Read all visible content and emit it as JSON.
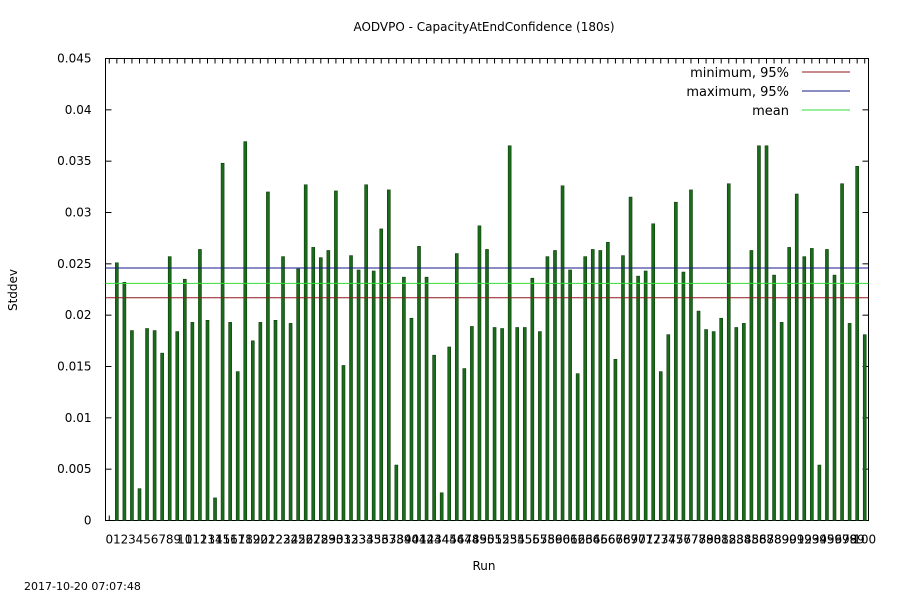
{
  "chart_data": {
    "type": "bar",
    "title": "AODVPO - CapacityAtEndConfidence (180s)",
    "xlabel": "Run",
    "ylabel": "Stddev",
    "ylim": [
      0,
      0.045
    ],
    "yticks": [
      "0",
      "0.005",
      "0.01",
      "0.015",
      "0.02",
      "0.025",
      "0.03",
      "0.035",
      "0.04",
      "0.045"
    ],
    "xticks": [
      "0",
      "1",
      "2",
      "3",
      "4",
      "5",
      "6",
      "7",
      "8",
      "9",
      "10",
      "11",
      "12",
      "13",
      "14",
      "15",
      "16",
      "17",
      "18",
      "19",
      "20",
      "21",
      "22",
      "23",
      "24",
      "25",
      "26",
      "27",
      "28",
      "29",
      "30",
      "31",
      "32",
      "33",
      "34",
      "35",
      "36",
      "37",
      "38",
      "39",
      "40",
      "41",
      "42",
      "43",
      "44",
      "45",
      "46",
      "47",
      "48",
      "49",
      "50",
      "51",
      "52",
      "53",
      "54",
      "55",
      "56",
      "57",
      "58",
      "59",
      "60",
      "61",
      "62",
      "63",
      "64",
      "65",
      "66",
      "67",
      "68",
      "69",
      "70",
      "71",
      "72",
      "73",
      "74",
      "75",
      "76",
      "77",
      "78",
      "79",
      "80",
      "81",
      "82",
      "83",
      "84",
      "85",
      "86",
      "87",
      "88",
      "89",
      "90",
      "91",
      "92",
      "93",
      "94",
      "95",
      "96",
      "97",
      "98",
      "99",
      "100"
    ],
    "bar_color": "#1a6b1a",
    "bar_edge_color": "#0a3d0a",
    "grid": false,
    "legend_position": "top-right",
    "series": [
      {
        "name": "",
        "values": [
          0.0251,
          0.0232,
          0.0185,
          0.0031,
          0.0187,
          0.0185,
          0.0163,
          0.0257,
          0.0184,
          0.0235,
          0.0193,
          0.0264,
          0.0195,
          0.0022,
          0.0348,
          0.0193,
          0.0145,
          0.0369,
          0.0175,
          0.0193,
          0.032,
          0.0195,
          0.0257,
          0.0192,
          0.0245,
          0.0327,
          0.0266,
          0.0256,
          0.0263,
          0.0321,
          0.0151,
          0.0258,
          0.0244,
          0.0327,
          0.0243,
          0.0284,
          0.0322,
          0.0054,
          0.0237,
          0.0197,
          0.0267,
          0.0237,
          0.0161,
          0.0027,
          0.0169,
          0.026,
          0.0148,
          0.0189,
          0.0287,
          0.0264,
          0.0188,
          0.0187,
          0.0365,
          0.0188,
          0.0188,
          0.0236,
          0.0184,
          0.0257,
          0.0263,
          0.0326,
          0.0244,
          0.0143,
          0.0257,
          0.0264,
          0.0263,
          0.0271,
          0.0157,
          0.0258,
          0.0315,
          0.0238,
          0.0243,
          0.0289,
          0.0145,
          0.0181,
          0.031,
          0.0242,
          0.0322,
          0.0204,
          0.0186,
          0.0184,
          0.0197,
          0.0328,
          0.0188,
          0.0192,
          0.0263,
          0.0365,
          0.0365,
          0.0239,
          0.0193,
          0.0266,
          0.0318,
          0.0257,
          0.0265,
          0.0054,
          0.0264,
          0.0239,
          0.0328,
          0.0192,
          0.0345,
          0.0181
        ]
      }
    ],
    "reference_lines": [
      {
        "name": "minimum, 95%",
        "value": 0.0217,
        "color": "#8b1a1a"
      },
      {
        "name": "maximum, 95%",
        "value": 0.0246,
        "color": "#1a1a8b"
      },
      {
        "name": "mean",
        "value": 0.0231,
        "color": "#33dd33"
      }
    ]
  },
  "footer": {
    "timestamp": "2017-10-20 07:07:48"
  }
}
